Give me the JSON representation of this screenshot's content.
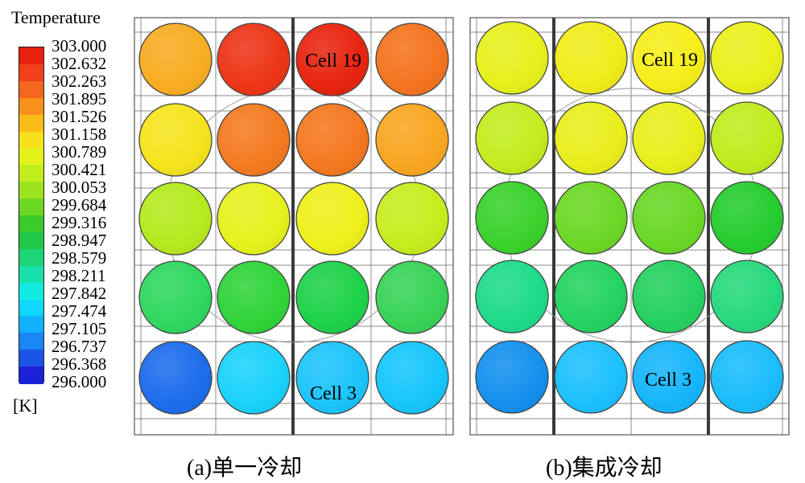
{
  "legend": {
    "title": "Temperature",
    "unit": "[K]",
    "values": [
      "303.000",
      "302.632",
      "302.263",
      "301.895",
      "301.526",
      "301.158",
      "300.789",
      "300.421",
      "300.053",
      "299.684",
      "299.316",
      "298.947",
      "298.579",
      "298.211",
      "297.842",
      "297.474",
      "297.105",
      "296.737",
      "296.368",
      "296.000"
    ],
    "colors": [
      "#e8210f",
      "#f0411a",
      "#f5661f",
      "#f8921d",
      "#fbbc1a",
      "#f7e11c",
      "#e5f21c",
      "#c2ee1d",
      "#9be41f",
      "#6cd823",
      "#39cb2a",
      "#1fc846",
      "#1dd478",
      "#18e0ab",
      "#12ece0",
      "#10d8ff",
      "#12b2ff",
      "#1886f6",
      "#1a55e6",
      "#1b22d6"
    ]
  },
  "panels": [
    {
      "caption": "(a)单一冷却",
      "cell_labels": [
        "Cell 19",
        "Cell 3"
      ],
      "rows": [
        [
          "#f8ad22",
          "#ec3516",
          "#e8240f",
          "#f4741f"
        ],
        [
          "#f5e41d",
          "#f47a20",
          "#f47820",
          "#f9a622"
        ],
        [
          "#b5ea1f",
          "#e6f11d",
          "#eff01c",
          "#c6ed1e"
        ],
        [
          "#2fd85e",
          "#30d43a",
          "#1ed24a",
          "#38d357"
        ],
        [
          "#1d6cec",
          "#1ad2fb",
          "#1cc4fc",
          "#17c6fc"
        ]
      ]
    },
    {
      "caption": "(b)集成冷却",
      "cell_labels": [
        "Cell 19",
        "Cell 3"
      ],
      "rows": [
        [
          "#e7f01c",
          "#f0ec1b",
          "#f6ee1a",
          "#eaf01c"
        ],
        [
          "#c4ec1e",
          "#eaee1c",
          "#e8ef1c",
          "#c0ec1e"
        ],
        [
          "#3ad22c",
          "#6cd826",
          "#6ad826",
          "#26cd2f"
        ],
        [
          "#1edb8a",
          "#24d361",
          "#25d160",
          "#27d97d"
        ],
        [
          "#1490ee",
          "#1cc0fd",
          "#16b6fc",
          "#1abdfc"
        ]
      ]
    }
  ]
}
